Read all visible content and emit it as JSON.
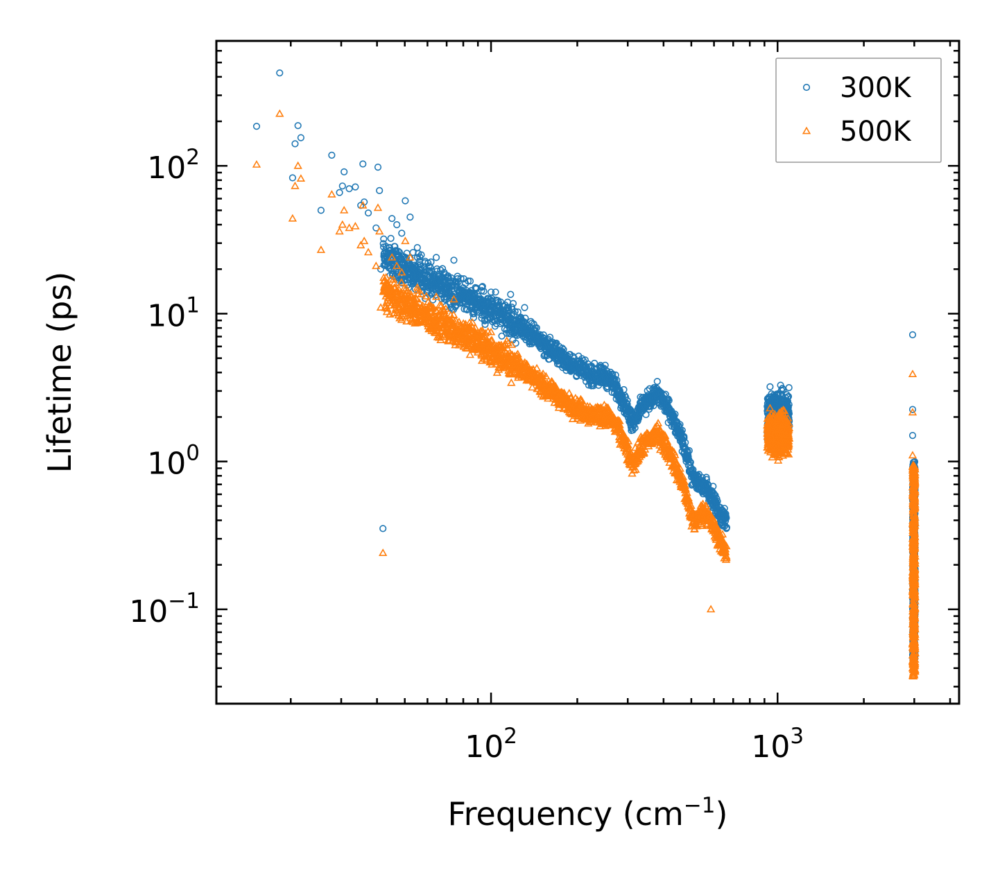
{
  "chart_data": {
    "type": "scatter",
    "title": "",
    "xlabel": "Frequency (cm",
    "xlabel_sup": "−1",
    "xlabel_close": ")",
    "ylabel": "Lifetime (ps)",
    "xscale": "log",
    "yscale": "log",
    "xlim": [
      11,
      4300
    ],
    "ylim": [
      0.023,
      700
    ],
    "x_ticks": [
      {
        "value": 100,
        "base": "10",
        "exp": "2"
      },
      {
        "value": 1000,
        "base": "10",
        "exp": "3"
      }
    ],
    "y_ticks": [
      {
        "value": 0.1,
        "base": "10",
        "exp": "−1"
      },
      {
        "value": 1,
        "base": "10",
        "exp": "0"
      },
      {
        "value": 10,
        "base": "10",
        "exp": "1"
      },
      {
        "value": 100,
        "base": "10",
        "exp": "2"
      }
    ],
    "legend_position": "top-right",
    "series": [
      {
        "name": "300K",
        "marker": "circle",
        "color": "#1f77b4",
        "anchor_points": [
          [
            15.2,
            185
          ],
          [
            18.3,
            425
          ],
          [
            20.3,
            83
          ],
          [
            20.7,
            141
          ],
          [
            21.2,
            187
          ],
          [
            21.7,
            155
          ],
          [
            25.5,
            50
          ],
          [
            27.8,
            118
          ],
          [
            29.6,
            66
          ],
          [
            30.3,
            73
          ],
          [
            30.7,
            91
          ],
          [
            32.0,
            70
          ],
          [
            33.6,
            72
          ],
          [
            35.1,
            54
          ],
          [
            35.7,
            103
          ],
          [
            36.1,
            57
          ],
          [
            37.3,
            48
          ],
          [
            39.7,
            38
          ],
          [
            40.3,
            98
          ],
          [
            40.8,
            68
          ],
          [
            41.2,
            20
          ],
          [
            42.2,
            32
          ],
          [
            44.3,
            28
          ],
          [
            45.1,
            44
          ],
          [
            46.9,
            40
          ],
          [
            48.8,
            35
          ],
          [
            50.2,
            58
          ],
          [
            52.2,
            45
          ],
          [
            55.3,
            28
          ],
          [
            57.1,
            25
          ],
          [
            60.3,
            22
          ],
          [
            64.4,
            24
          ],
          [
            68.6,
            19
          ],
          [
            74.2,
            23
          ],
          [
            81.4,
            16
          ],
          [
            88.2,
            15
          ],
          [
            100,
            14
          ],
          [
            108,
            12
          ],
          [
            117,
            13.5
          ],
          [
            131,
            11
          ],
          [
            141,
            8.5
          ]
        ],
        "trend": [
          [
            42,
            25
          ],
          [
            60,
            17
          ],
          [
            80,
            13.5
          ],
          [
            100,
            10.5
          ],
          [
            130,
            8
          ],
          [
            160,
            5.8
          ],
          [
            190,
            4.6
          ],
          [
            220,
            3.9
          ],
          [
            250,
            3.8
          ],
          [
            265,
            3.5
          ],
          [
            290,
            2.6
          ],
          [
            310,
            1.85
          ],
          [
            340,
            2.4
          ],
          [
            380,
            2.9
          ],
          [
            420,
            2.2
          ],
          [
            470,
            1.3
          ],
          [
            510,
            0.75
          ],
          [
            560,
            0.68
          ],
          [
            600,
            0.55
          ],
          [
            640,
            0.42
          ],
          [
            665,
            0.4
          ]
        ],
        "clusters": [
          {
            "x_range": [
              920,
              1100
            ],
            "y_range": [
              1.1,
              3.7
            ]
          },
          {
            "x_range": [
              2960,
              3020
            ],
            "y_range": [
              0.045,
              1.0
            ]
          }
        ],
        "high_points": [
          [
            2960,
            7.2
          ],
          [
            2960,
            2.25
          ],
          [
            2960,
            1.5
          ]
        ]
      },
      {
        "name": "500K",
        "marker": "triangle",
        "color": "#ff7f0e",
        "anchor_points": [
          [
            15.2,
            102
          ],
          [
            18.3,
            225
          ],
          [
            20.3,
            44
          ],
          [
            20.7,
            73
          ],
          [
            21.2,
            100
          ],
          [
            21.7,
            82
          ],
          [
            25.5,
            27
          ],
          [
            27.8,
            64
          ],
          [
            29.6,
            36
          ],
          [
            30.3,
            40
          ],
          [
            30.7,
            50
          ],
          [
            32.0,
            38
          ],
          [
            33.6,
            39
          ],
          [
            35.1,
            29
          ],
          [
            35.7,
            54
          ],
          [
            36.1,
            31
          ],
          [
            37.3,
            26
          ],
          [
            39.7,
            21
          ],
          [
            40.3,
            52
          ],
          [
            40.8,
            36
          ],
          [
            41.2,
            11
          ],
          [
            42.2,
            17.5
          ],
          [
            44.3,
            15
          ],
          [
            45.1,
            24
          ],
          [
            46.9,
            21
          ],
          [
            48.8,
            19
          ],
          [
            50.2,
            31
          ],
          [
            52.2,
            24
          ],
          [
            55.3,
            15
          ],
          [
            57.1,
            13.5
          ],
          [
            60.3,
            12
          ],
          [
            64.4,
            13
          ],
          [
            68.6,
            10.5
          ],
          [
            74.2,
            12.5
          ],
          [
            81.4,
            8.5
          ],
          [
            88.2,
            8
          ],
          [
            100,
            7.5
          ]
        ],
        "trend": [
          [
            42,
            14
          ],
          [
            60,
            9.5
          ],
          [
            80,
            7.3
          ],
          [
            100,
            5.6
          ],
          [
            130,
            4.2
          ],
          [
            160,
            3.0
          ],
          [
            190,
            2.4
          ],
          [
            220,
            2.1
          ],
          [
            250,
            2.05
          ],
          [
            265,
            1.9
          ],
          [
            290,
            1.4
          ],
          [
            310,
            0.95
          ],
          [
            340,
            1.3
          ],
          [
            380,
            1.55
          ],
          [
            420,
            1.15
          ],
          [
            470,
            0.68
          ],
          [
            510,
            0.38
          ],
          [
            560,
            0.47
          ],
          [
            600,
            0.35
          ],
          [
            640,
            0.27
          ],
          [
            665,
            0.24
          ]
        ],
        "clusters": [
          {
            "x_range": [
              920,
              1100
            ],
            "y_range": [
              0.9,
              2.6
            ]
          },
          {
            "x_range": [
              2960,
              3020
            ],
            "y_range": [
              0.035,
              0.95
            ]
          }
        ],
        "high_points": [
          [
            2960,
            3.9
          ],
          [
            2960,
            2.15
          ],
          [
            2960,
            1.1
          ],
          [
            585,
            0.1
          ]
        ]
      }
    ]
  }
}
